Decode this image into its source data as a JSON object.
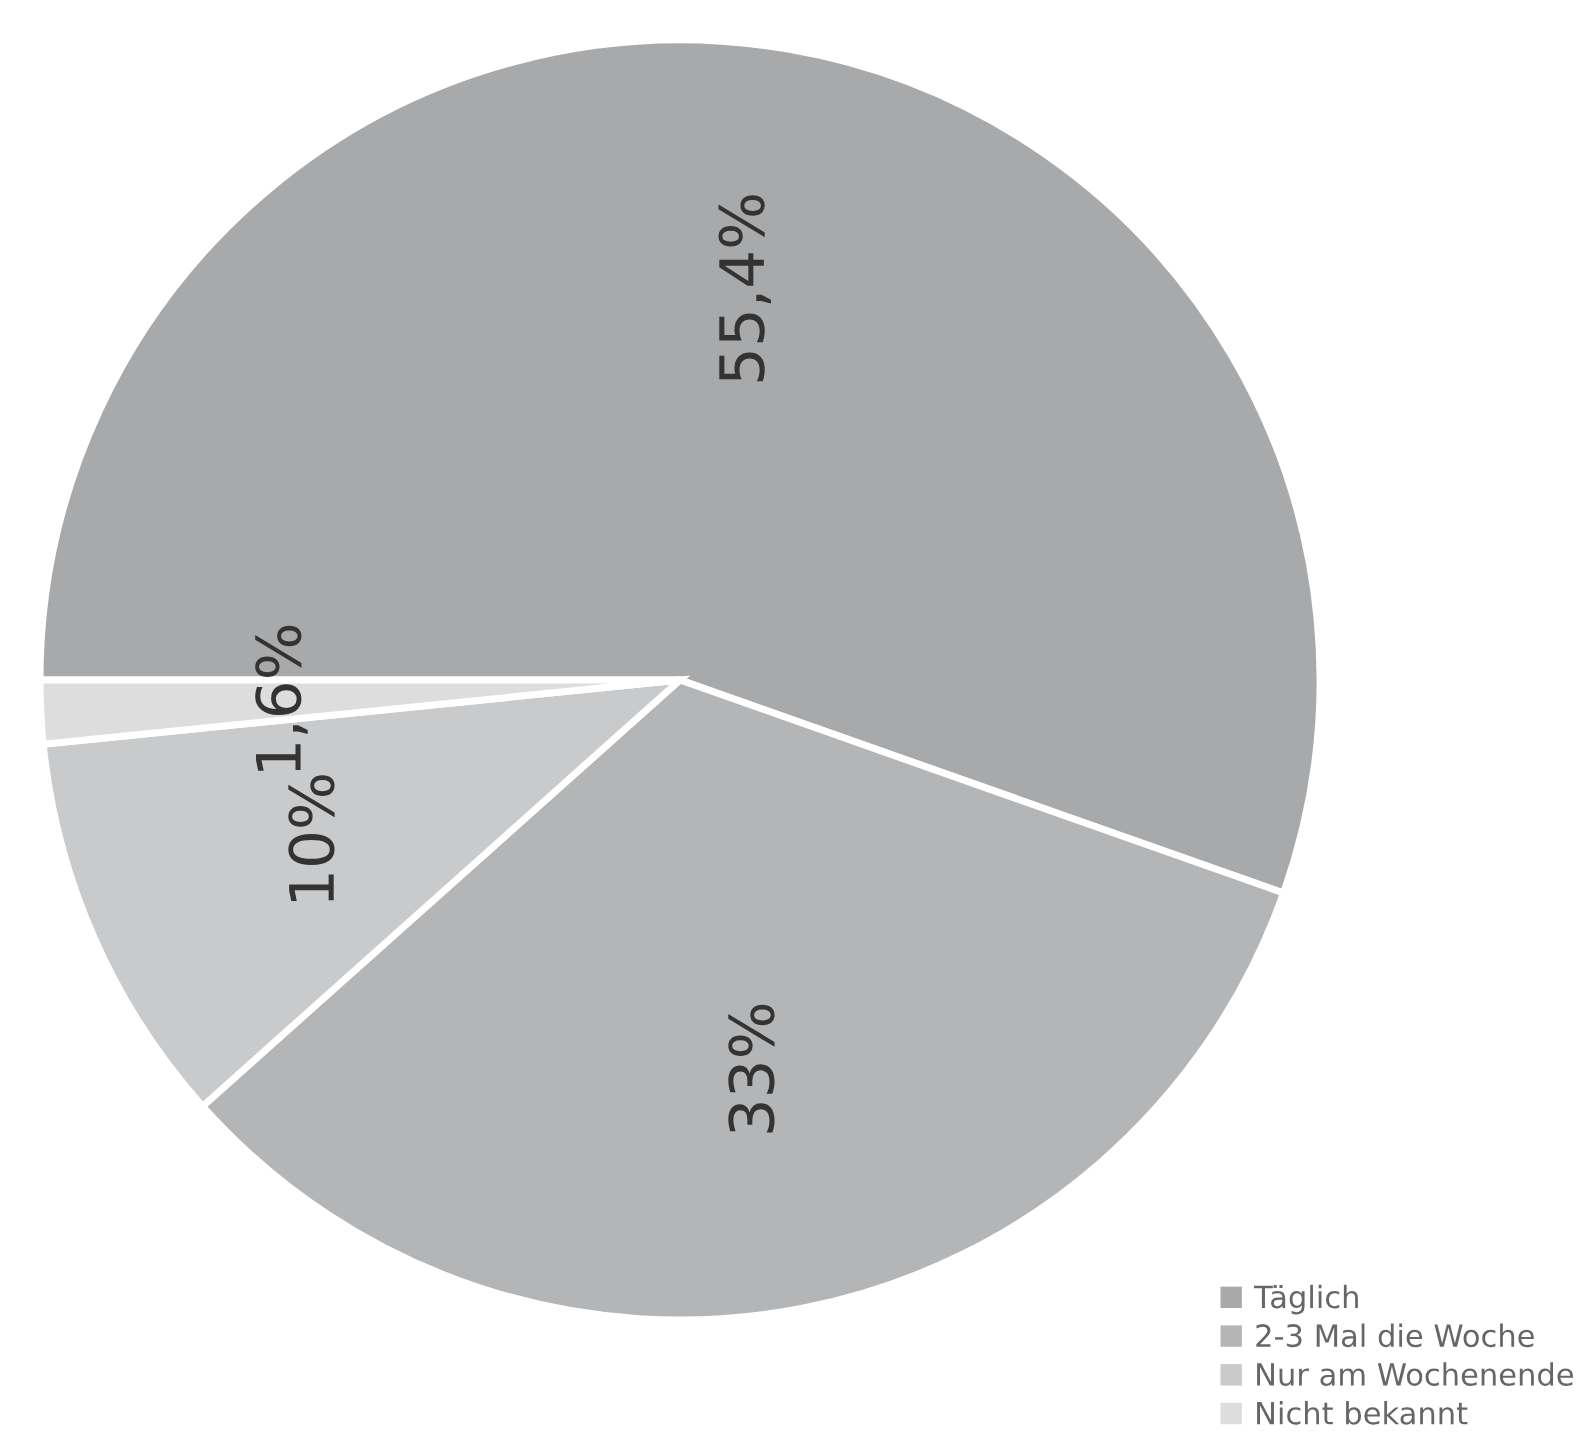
{
  "chart_data": {
    "type": "pie",
    "categories": [
      "Täglich",
      "2-3 Mal die Woche",
      "Nur am Wochenende",
      "Nicht bekannt"
    ],
    "values": [
      55.4,
      33,
      10,
      1.6
    ],
    "value_labels": [
      "55,4%",
      "33%",
      "10%",
      "1,6%"
    ],
    "colors": [
      "#a8a9aa",
      "#b4b5b6",
      "#c9cacb",
      "#dddddd"
    ],
    "legend": "right"
  }
}
